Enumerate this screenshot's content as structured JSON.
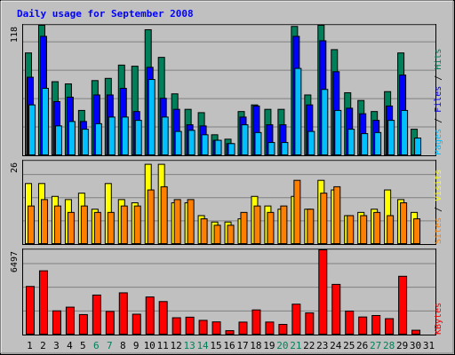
{
  "title": "Daily usage for September 2008",
  "colors": {
    "background": "#C0C0C0",
    "title": "#0000FF",
    "hits": "#00805A",
    "files": "#0000FF",
    "pages": "#00C0FF",
    "visits": "#FFFF00",
    "sites": "#FF8000",
    "kbytes": "#FF0000",
    "weekday_label": "#000000",
    "weekend_label": "#00805A"
  },
  "chart_data": [
    {
      "type": "bar",
      "panel": "hits-files-pages",
      "max_label": "118",
      "ylim": [
        0,
        118
      ],
      "legend": [
        "Pages",
        "Files",
        "Hits"
      ],
      "categories": [
        "1",
        "2",
        "3",
        "4",
        "5",
        "6",
        "7",
        "8",
        "9",
        "10",
        "11",
        "12",
        "13",
        "14",
        "15",
        "16",
        "17",
        "18",
        "19",
        "20",
        "21",
        "22",
        "23",
        "24",
        "25",
        "26",
        "27",
        "28",
        "29",
        "30",
        "31"
      ],
      "series": [
        {
          "name": "Hits",
          "color": "#00805A",
          "values": [
            93,
            118,
            67,
            65,
            41,
            68,
            70,
            82,
            81,
            114,
            89,
            56,
            42,
            39,
            19,
            15,
            40,
            46,
            42,
            42,
            117,
            55,
            118,
            96,
            57,
            50,
            40,
            58,
            93,
            24,
            0
          ]
        },
        {
          "name": "Files",
          "color": "#0000FF",
          "values": [
            71,
            108,
            49,
            53,
            31,
            55,
            55,
            61,
            40,
            80,
            52,
            42,
            28,
            27,
            14,
            11,
            35,
            45,
            28,
            28,
            108,
            46,
            104,
            76,
            43,
            38,
            32,
            45,
            73,
            0,
            0
          ]
        },
        {
          "name": "Pages",
          "color": "#00C0FF",
          "values": [
            46,
            61,
            27,
            31,
            24,
            29,
            35,
            35,
            32,
            69,
            35,
            22,
            23,
            19,
            14,
            11,
            28,
            21,
            12,
            12,
            79,
            22,
            60,
            41,
            24,
            20,
            21,
            32,
            41,
            16,
            0
          ]
        }
      ]
    },
    {
      "type": "bar",
      "panel": "visits-sites",
      "max_label": "26",
      "ylim": [
        0,
        26
      ],
      "legend": [
        "Sites",
        "Visits"
      ],
      "categories": [
        "1",
        "2",
        "3",
        "4",
        "5",
        "6",
        "7",
        "8",
        "9",
        "10",
        "11",
        "12",
        "13",
        "14",
        "15",
        "16",
        "17",
        "18",
        "19",
        "20",
        "21",
        "22",
        "23",
        "24",
        "25",
        "26",
        "27",
        "28",
        "29",
        "30",
        "31"
      ],
      "series": [
        {
          "name": "Visits",
          "color": "#FFFF00",
          "values": [
            19,
            19,
            15,
            14,
            16,
            11,
            19,
            14,
            13,
            25,
            25,
            13,
            13,
            9,
            7,
            7,
            8,
            15,
            12,
            11,
            15,
            11,
            20,
            17,
            9,
            10,
            11,
            17,
            14,
            10,
            0
          ]
        },
        {
          "name": "Sites",
          "color": "#FF8000",
          "values": [
            12,
            14,
            12,
            10,
            12,
            10,
            10,
            12,
            12,
            17,
            18,
            14,
            14,
            8,
            6,
            6,
            10,
            12,
            10,
            12,
            20,
            11,
            16,
            18,
            9,
            9,
            10,
            9,
            13,
            8,
            0
          ]
        }
      ]
    },
    {
      "type": "bar",
      "panel": "kbytes",
      "max_label": "6497",
      "ylim": [
        0,
        6497
      ],
      "legend": [
        "KBytes"
      ],
      "categories": [
        "1",
        "2",
        "3",
        "4",
        "5",
        "6",
        "7",
        "8",
        "9",
        "10",
        "11",
        "12",
        "13",
        "14",
        "15",
        "16",
        "17",
        "18",
        "19",
        "20",
        "21",
        "22",
        "23",
        "24",
        "25",
        "26",
        "27",
        "28",
        "29",
        "30",
        "31"
      ],
      "series": [
        {
          "name": "KBytes",
          "color": "#FF0000",
          "values": [
            3706,
            4898,
            1845,
            2127,
            1560,
            3049,
            1798,
            3219,
            1589,
            2903,
            2553,
            1319,
            1362,
            1121,
            1004,
            333,
            987,
            1915,
            992,
            811,
            2354,
            1688,
            6497,
            3864,
            1822,
            1376,
            1489,
            1249,
            4480,
            366,
            0
          ]
        }
      ]
    }
  ],
  "x_labels": [
    {
      "text": "1",
      "weekend": false
    },
    {
      "text": "2",
      "weekend": false
    },
    {
      "text": "3",
      "weekend": false
    },
    {
      "text": "4",
      "weekend": false
    },
    {
      "text": "5",
      "weekend": false
    },
    {
      "text": "6",
      "weekend": true
    },
    {
      "text": "7",
      "weekend": true
    },
    {
      "text": "8",
      "weekend": false
    },
    {
      "text": "9",
      "weekend": false
    },
    {
      "text": "10",
      "weekend": false
    },
    {
      "text": "11",
      "weekend": false
    },
    {
      "text": "12",
      "weekend": false
    },
    {
      "text": "13",
      "weekend": true
    },
    {
      "text": "14",
      "weekend": true
    },
    {
      "text": "15",
      "weekend": false
    },
    {
      "text": "16",
      "weekend": false
    },
    {
      "text": "17",
      "weekend": false
    },
    {
      "text": "18",
      "weekend": false
    },
    {
      "text": "19",
      "weekend": false
    },
    {
      "text": "20",
      "weekend": true
    },
    {
      "text": "21",
      "weekend": true
    },
    {
      "text": "22",
      "weekend": false
    },
    {
      "text": "23",
      "weekend": false
    },
    {
      "text": "24",
      "weekend": false
    },
    {
      "text": "25",
      "weekend": false
    },
    {
      "text": "26",
      "weekend": false
    },
    {
      "text": "27",
      "weekend": true
    },
    {
      "text": "28",
      "weekend": true
    },
    {
      "text": "29",
      "weekend": false
    },
    {
      "text": "30",
      "weekend": false
    },
    {
      "text": "31",
      "weekend": false
    }
  ],
  "legend_separator": " / "
}
